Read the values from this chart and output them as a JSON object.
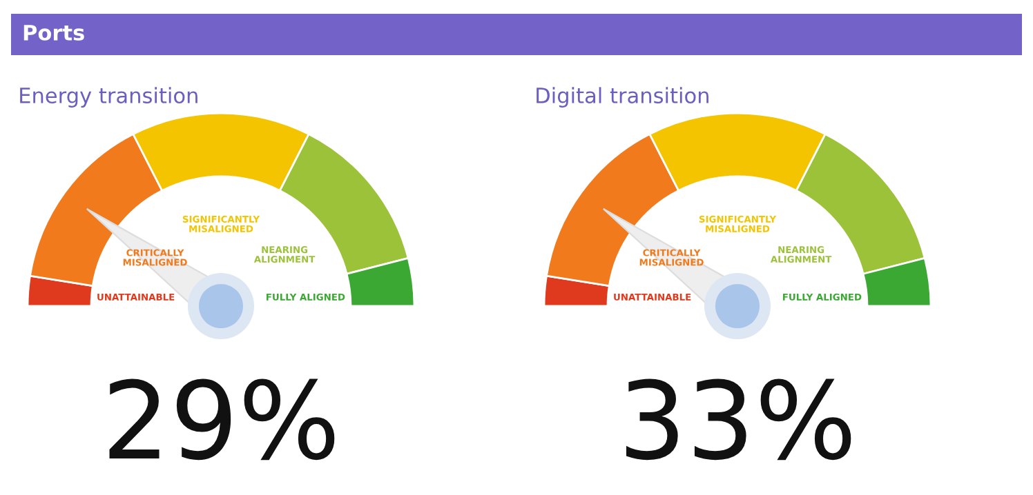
{
  "chart_data": [
    {
      "type": "donut",
      "title": "Energy transition",
      "categories": [
        "UNATTAINABLE",
        "CRITICALLY\nMISALIGNED",
        "SIGNIFICANTLY\nMISALIGNED",
        "NEARING\nALIGNMENT",
        "FULLY ALIGNED"
      ],
      "values": [
        5,
        30,
        30,
        27,
        8
      ],
      "colors": [
        "#e03a1e",
        "#f07a1c",
        "#f5c400",
        "#9cc23a",
        "#3aa832"
      ],
      "needle": "CRITICALLY\nMISALIGNED",
      "annotations": [
        "29%",
        "Ports"
      ]
    },
    {
      "type": "donut",
      "title": "Digital transition",
      "categories": [
        "UNATTAINABLE",
        "CRITICALLY\nMISALIGNED",
        "SIGNIFICANTLY\nMISALIGNED",
        "NEARING\nALIGNMENT",
        "FULLY ALIGNED"
      ],
      "values": [
        5,
        30,
        30,
        27,
        8
      ],
      "colors": [
        "#e03a1e",
        "#f07a1c",
        "#f5c400",
        "#9cc23a",
        "#3aa832"
      ],
      "needle": "CRITICALLY\nMISALIGNED",
      "annotations": [
        "33%"
      ]
    }
  ]
}
